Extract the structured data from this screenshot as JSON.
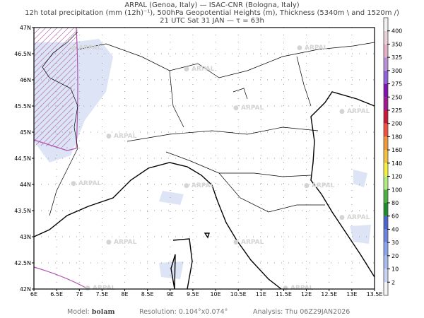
{
  "header": {
    "line1": "ARPAL (Genoa, Italy)  —  ISAC-CNR (Bologna, Italy)",
    "line2": "12h total precipitation (mm (12h)⁻¹), 500hPa Geopotential Heights (m), Thickness (5340m \\ and 1520m /)",
    "line3": "21 UTC Sat 31 JAN  —  τ = 63h"
  },
  "map": {
    "lat_labels": [
      "47N",
      "46.5N",
      "46N",
      "45.5N",
      "45N",
      "44.5N",
      "44N",
      "43.5N",
      "43N",
      "42.5N",
      "42N"
    ],
    "lon_labels": [
      "6E",
      "6.5E",
      "7E",
      "7.5E",
      "8E",
      "8.5E",
      "9E",
      "9.5E",
      "10E",
      "10.5E",
      "11E",
      "11.5E",
      "12E",
      "12.5E",
      "13E",
      "13.5E"
    ],
    "watermark": "ARPAL",
    "grid": "dotted"
  },
  "colorbar": {
    "levels": [
      "2",
      "10",
      "20",
      "30",
      "40",
      "60",
      "80",
      "100",
      "120",
      "140",
      "160",
      "180",
      "200",
      "225",
      "250",
      "275",
      "300",
      "325",
      "350",
      "400"
    ],
    "colors": [
      "#f4f4f4",
      "#c8d4f4",
      "#a8bcf0",
      "#8ca4ec",
      "#6a84e0",
      "#4a64d0",
      "#1e8c2c",
      "#4cb040",
      "#b0ec80",
      "#f4f040",
      "#f4c040",
      "#f09838",
      "#f05040",
      "#c81838",
      "#a01890",
      "#8010b0",
      "#9060d8",
      "#b890d8",
      "#e4b0c8",
      "#e8d0d8",
      "#f0f0f0"
    ]
  },
  "footer": {
    "model_label": "Model:",
    "model": "bolam",
    "resolution": "Resolution: 0.104°x0.074°",
    "analysis": "Analysis: Thu  06Z29JAN2026"
  }
}
